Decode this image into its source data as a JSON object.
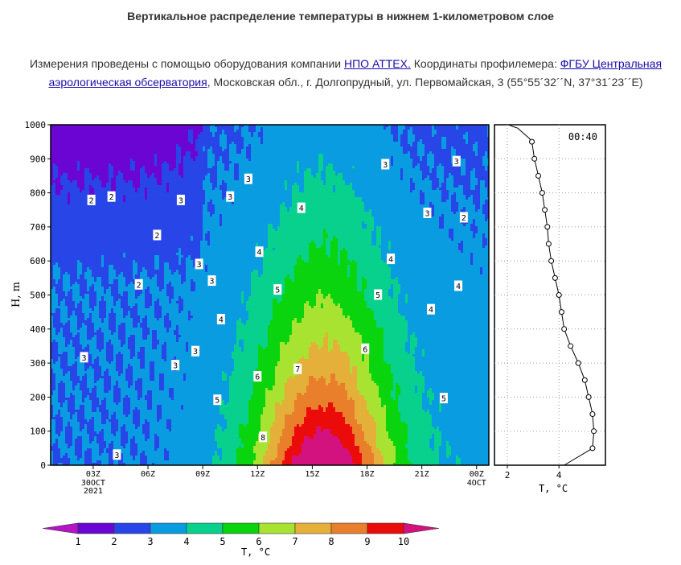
{
  "header": {
    "title": "Вертикальное распределение температуры в нижнем 1-километровом слое",
    "info_prefix": "Измерения проведены с помощью оборудования компании ",
    "company_link": "НПО АТТЕХ.",
    "info_middle": "  Координаты профилемера:  ",
    "observatory_link": "ФГБУ Центральная аэрологическая обсерватория",
    "info_suffix": ", Московская обл., г. Долгопрудный, ул. Первомайская, 3 (55°55´32´´N, 37°31´23´´E)"
  },
  "chart_data": [
    {
      "type": "heatmap",
      "title": "",
      "ylabel": "H, m",
      "ylim": [
        0,
        1000
      ],
      "y_ticks": [
        "0",
        "100",
        "200",
        "300",
        "400",
        "500",
        "600",
        "700",
        "800",
        "900",
        "1000"
      ],
      "x_ticks": [
        "03Z",
        "06Z",
        "09Z",
        "12Z",
        "15Z",
        "18Z",
        "21Z",
        "00Z"
      ],
      "x_date_labels": [
        {
          "tick": "03Z",
          "lines": [
            "30OCT",
            "2021"
          ]
        },
        {
          "tick": "00Z",
          "lines": [
            "4OCT"
          ]
        }
      ],
      "x_range_hours": [
        0.67,
        24.67
      ],
      "grid": false,
      "contour_labels": [
        {
          "value": 2,
          "h": 23.3,
          "H": 727
        },
        {
          "value": 2,
          "h": 2.9,
          "H": 778
        },
        {
          "value": 2,
          "h": 4.0,
          "H": 788
        },
        {
          "value": 2,
          "h": 5.5,
          "H": 530
        },
        {
          "value": 2,
          "h": 6.5,
          "H": 675
        },
        {
          "value": 3,
          "h": 7.8,
          "H": 778
        },
        {
          "value": 3,
          "h": 8.8,
          "H": 590
        },
        {
          "value": 3,
          "h": 9.5,
          "H": 541
        },
        {
          "value": 3,
          "h": 10.5,
          "H": 788
        },
        {
          "value": 3,
          "h": 11.5,
          "H": 840
        },
        {
          "value": 3,
          "h": 7.5,
          "H": 293
        },
        {
          "value": 3,
          "h": 8.6,
          "H": 334
        },
        {
          "value": 3,
          "h": 2.5,
          "H": 316
        },
        {
          "value": 3,
          "h": 4.3,
          "H": 30
        },
        {
          "value": 3,
          "h": 19.0,
          "H": 883
        },
        {
          "value": 3,
          "h": 21.3,
          "H": 740
        },
        {
          "value": 3,
          "h": 22.9,
          "H": 892
        },
        {
          "value": 4,
          "h": 10.0,
          "H": 428
        },
        {
          "value": 4,
          "h": 12.1,
          "H": 626
        },
        {
          "value": 4,
          "h": 14.4,
          "H": 755
        },
        {
          "value": 4,
          "h": 19.3,
          "H": 605
        },
        {
          "value": 4,
          "h": 21.5,
          "H": 457
        },
        {
          "value": 4,
          "h": 23.0,
          "H": 526
        },
        {
          "value": 5,
          "h": 9.8,
          "H": 191
        },
        {
          "value": 5,
          "h": 13.1,
          "H": 515
        },
        {
          "value": 5,
          "h": 18.6,
          "H": 500
        },
        {
          "value": 5,
          "h": 22.2,
          "H": 196
        },
        {
          "value": 6,
          "h": 12.0,
          "H": 260
        },
        {
          "value": 6,
          "h": 17.9,
          "H": 341
        },
        {
          "value": 7,
          "h": 14.2,
          "H": 282
        },
        {
          "value": 8,
          "h": 12.3,
          "H": 82
        }
      ]
    },
    {
      "type": "line",
      "title": "",
      "annotation": "00:40",
      "xlabel": "T, °C",
      "ylabel": "",
      "xlim": [
        1.5,
        5.8
      ],
      "ylim": [
        0,
        1000
      ],
      "x_ticks": [
        "2",
        "4"
      ],
      "grid": true,
      "series": [
        {
          "x": [
            4.2,
            5.3,
            5.35,
            5.3,
            5.15,
            5.0,
            4.75,
            4.45,
            4.2,
            4.1,
            4.0,
            3.85,
            3.7,
            3.6,
            3.55,
            3.45,
            3.35,
            3.2,
            3.05,
            2.95,
            2.85,
            2.7,
            2.55,
            2.4,
            2.2,
            2.05
          ],
          "y": [
            0,
            50,
            100,
            150,
            200,
            250,
            300,
            350,
            400,
            450,
            500,
            550,
            600,
            650,
            700,
            750,
            800,
            850,
            900,
            950,
            960,
            970,
            980,
            990,
            995,
            1000
          ]
        }
      ]
    }
  ],
  "colorbar": {
    "label": "T, °C",
    "ticks": [
      "1",
      "2",
      "3",
      "4",
      "5",
      "6",
      "7",
      "8",
      "9",
      "10"
    ],
    "colors": [
      "#b413c6",
      "#6a05d4",
      "#2845e8",
      "#0a9ce0",
      "#07d18c",
      "#0ad40e",
      "#a9e331",
      "#e5b03a",
      "#e97f2a",
      "#ec0b0b",
      "#d4127f"
    ]
  }
}
